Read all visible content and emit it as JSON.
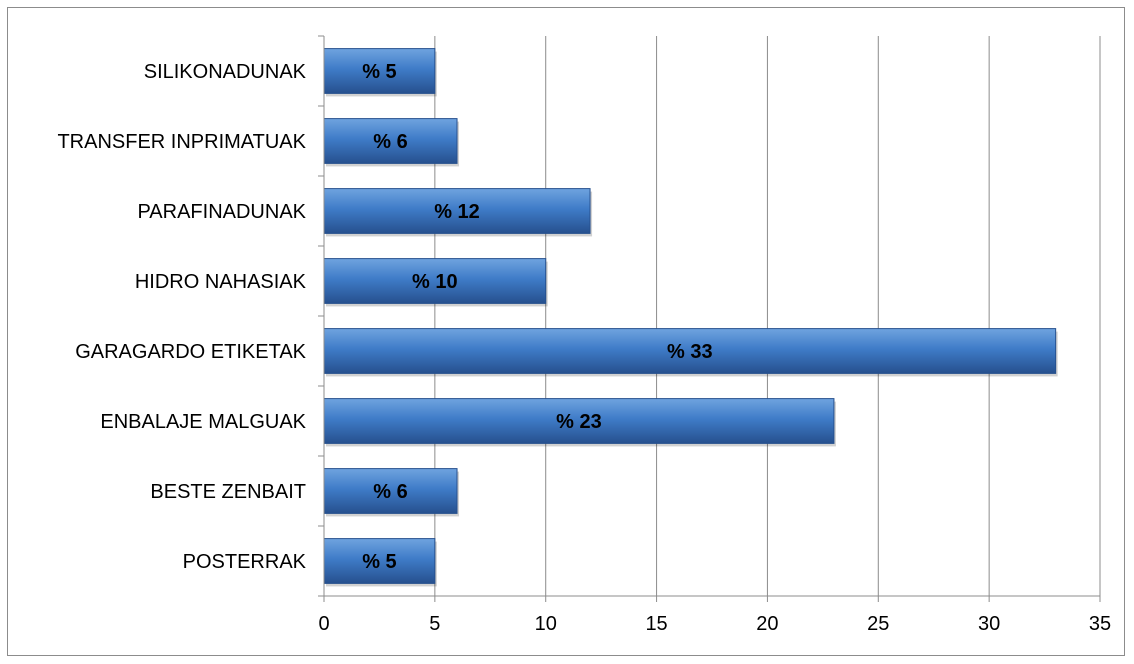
{
  "chart_data": {
    "type": "bar",
    "orientation": "horizontal",
    "categories": [
      "SILIKONADUNAK",
      "TRANSFER INPRIMATUAK",
      "PARAFINADUNAK",
      "HIDRO NAHASIAK",
      "GARAGARDO ETIKETAK",
      "ENBALAJE MALGUAK",
      "BESTE ZENBAIT",
      "POSTERRAK"
    ],
    "values": [
      5,
      6,
      12,
      10,
      33,
      23,
      6,
      5
    ],
    "data_labels": [
      "% 5",
      "% 6",
      "% 12",
      "% 10",
      "% 33",
      "% 23",
      "% 6",
      "% 5"
    ],
    "x_ticks": [
      0,
      5,
      10,
      15,
      20,
      25,
      30,
      35
    ],
    "xlim": [
      0,
      35
    ],
    "title": "",
    "xlabel": "",
    "ylabel": "",
    "grid": "vertical",
    "legend": "none",
    "colors": {
      "bar_light": "#6fa3df",
      "bar_mid": "#3f7cc8",
      "bar_dark": "#26508e",
      "grid": "#8c8c8c",
      "axis": "#8c8c8c"
    }
  }
}
